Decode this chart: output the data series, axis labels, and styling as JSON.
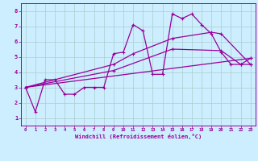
{
  "background_color": "#cceeff",
  "grid_color": "#aacccc",
  "line_color": "#990099",
  "xlabel": "Windchill (Refroidissement éolien,°C)",
  "xlim": [
    -0.5,
    23.5
  ],
  "ylim": [
    0.5,
    8.5
  ],
  "yticks": [
    1,
    2,
    3,
    4,
    5,
    6,
    7,
    8
  ],
  "xticks": [
    0,
    1,
    2,
    3,
    4,
    5,
    6,
    7,
    8,
    9,
    10,
    11,
    12,
    13,
    14,
    15,
    16,
    17,
    18,
    19,
    20,
    21,
    22,
    23
  ],
  "series1": [
    [
      0,
      3.0
    ],
    [
      1,
      1.4
    ],
    [
      2,
      3.5
    ],
    [
      3,
      3.5
    ],
    [
      4,
      2.55
    ],
    [
      5,
      2.55
    ],
    [
      6,
      3.0
    ],
    [
      7,
      3.0
    ],
    [
      8,
      3.0
    ],
    [
      9,
      5.2
    ],
    [
      10,
      5.3
    ],
    [
      11,
      7.1
    ],
    [
      12,
      6.7
    ],
    [
      13,
      3.85
    ],
    [
      14,
      3.85
    ],
    [
      15,
      7.8
    ],
    [
      16,
      7.5
    ],
    [
      17,
      7.8
    ],
    [
      18,
      7.1
    ],
    [
      19,
      6.5
    ],
    [
      20,
      5.3
    ],
    [
      21,
      4.5
    ],
    [
      22,
      4.5
    ],
    [
      23,
      4.9
    ]
  ],
  "series2": [
    [
      0,
      3.0
    ],
    [
      23,
      4.9
    ]
  ],
  "series3": [
    [
      0,
      3.0
    ],
    [
      9,
      4.5
    ],
    [
      11,
      5.2
    ],
    [
      15,
      6.2
    ],
    [
      19,
      6.6
    ],
    [
      20,
      6.5
    ],
    [
      23,
      4.5
    ]
  ],
  "series4": [
    [
      0,
      3.0
    ],
    [
      9,
      4.1
    ],
    [
      15,
      5.5
    ],
    [
      20,
      5.4
    ],
    [
      22,
      4.5
    ],
    [
      23,
      4.5
    ]
  ]
}
